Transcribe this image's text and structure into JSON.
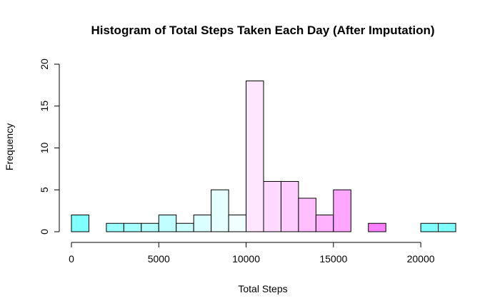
{
  "chart_data": {
    "type": "bar",
    "title": "Histogram of Total Steps Taken Each Day (After Imputation)",
    "xlabel": "Total Steps",
    "ylabel": "Frequency",
    "xlim": [
      0,
      22000
    ],
    "ylim": [
      0,
      20
    ],
    "x_ticks": [
      0,
      5000,
      10000,
      15000,
      20000
    ],
    "x_tick_labels": [
      "0",
      "5000",
      "10000",
      "15000",
      "20000"
    ],
    "y_ticks": [
      0,
      5,
      10,
      15,
      20
    ],
    "y_tick_labels": [
      "0",
      "5",
      "10",
      "15",
      "20"
    ],
    "bin_width": 1000,
    "bins": [
      {
        "start": 0,
        "end": 1000,
        "count": 2,
        "color": "#80ffff"
      },
      {
        "start": 1000,
        "end": 2000,
        "count": 0,
        "color": "#8cffff"
      },
      {
        "start": 2000,
        "end": 3000,
        "count": 1,
        "color": "#99ffff"
      },
      {
        "start": 3000,
        "end": 4000,
        "count": 1,
        "color": "#a6ffff"
      },
      {
        "start": 4000,
        "end": 5000,
        "count": 1,
        "color": "#b3ffff"
      },
      {
        "start": 5000,
        "end": 6000,
        "count": 2,
        "color": "#bfffff"
      },
      {
        "start": 6000,
        "end": 7000,
        "count": 1,
        "color": "#ccffff"
      },
      {
        "start": 7000,
        "end": 8000,
        "count": 2,
        "color": "#d9ffff"
      },
      {
        "start": 8000,
        "end": 9000,
        "count": 5,
        "color": "#e6ffff"
      },
      {
        "start": 9000,
        "end": 10000,
        "count": 2,
        "color": "#f2ffff"
      },
      {
        "start": 10000,
        "end": 11000,
        "count": 18,
        "color": "#ffe6ff"
      },
      {
        "start": 11000,
        "end": 12000,
        "count": 6,
        "color": "#ffd9ff"
      },
      {
        "start": 12000,
        "end": 13000,
        "count": 6,
        "color": "#ffccff"
      },
      {
        "start": 13000,
        "end": 14000,
        "count": 4,
        "color": "#ffbfff"
      },
      {
        "start": 14000,
        "end": 15000,
        "count": 2,
        "color": "#ffb3ff"
      },
      {
        "start": 15000,
        "end": 16000,
        "count": 5,
        "color": "#ffa6ff"
      },
      {
        "start": 16000,
        "end": 17000,
        "count": 0,
        "color": "#ff99ff"
      },
      {
        "start": 17000,
        "end": 18000,
        "count": 1,
        "color": "#ff80ff"
      },
      {
        "start": 18000,
        "end": 19000,
        "count": 0,
        "color": "#ff80ff"
      },
      {
        "start": 19000,
        "end": 20000,
        "count": 0,
        "color": "#ff80ff"
      },
      {
        "start": 20000,
        "end": 21000,
        "count": 1,
        "color": "#80ffff"
      },
      {
        "start": 21000,
        "end": 22000,
        "count": 1,
        "color": "#80ffff"
      }
    ],
    "grid": false,
    "legend": "none"
  }
}
